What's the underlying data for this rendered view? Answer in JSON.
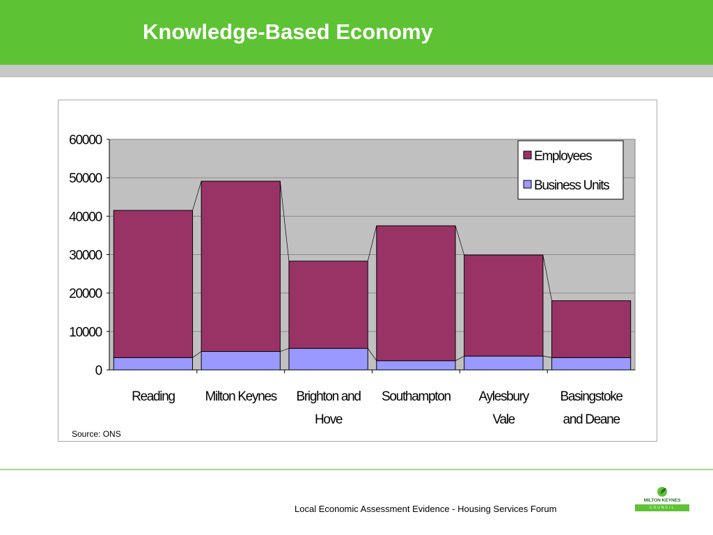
{
  "header": {
    "title": "Knowledge-Based Economy"
  },
  "chart_data": {
    "type": "bar",
    "stacked": true,
    "categories": [
      [
        "Reading"
      ],
      [
        "Milton Keynes"
      ],
      [
        "Brighton and",
        "Hove"
      ],
      [
        "Southampton"
      ],
      [
        "Aylesbury",
        "Vale"
      ],
      [
        "Basingstoke",
        "and Deane"
      ]
    ],
    "series": [
      {
        "name": "Business Units",
        "color": "#9999ff",
        "values": [
          3200,
          4800,
          5600,
          2400,
          3600,
          3200
        ]
      },
      {
        "name": "Employees",
        "color": "#993366",
        "values": [
          38300,
          44300,
          22700,
          35100,
          26300,
          14800
        ]
      }
    ],
    "ylim": [
      0,
      60000
    ],
    "yticks": [
      0,
      10000,
      20000,
      30000,
      40000,
      50000,
      60000
    ],
    "grid": true,
    "legend_position": "top-right",
    "plot_background": "#c0c0c0",
    "source": "Source: ONS"
  },
  "footer": {
    "text": "Local Economic Assessment Evidence - Housing Services Forum"
  },
  "logo": {
    "line1": "MILTON KEYNES",
    "line2": "COUNCIL"
  }
}
